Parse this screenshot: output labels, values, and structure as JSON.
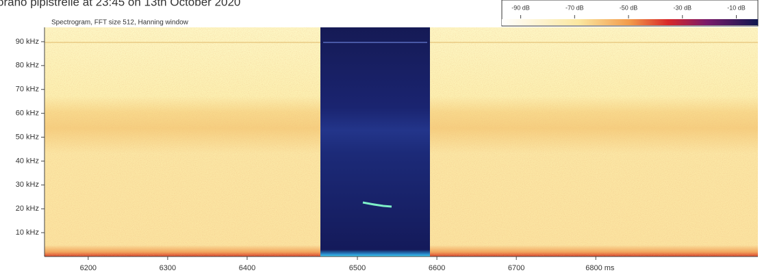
{
  "chart_data": {
    "type": "spectrogram",
    "title": "orano pipistrelle at 23:45 on 13th October 2020",
    "subtitle": "Spectrogram, FFT size 512, Hanning window",
    "ylim": [
      0,
      96
    ],
    "yticks": [
      {
        "value": 10,
        "label": "10 kHz"
      },
      {
        "value": 20,
        "label": "20 kHz"
      },
      {
        "value": 30,
        "label": "30 kHz"
      },
      {
        "value": 40,
        "label": "40 kHz"
      },
      {
        "value": 50,
        "label": "50 kHz"
      },
      {
        "value": 60,
        "label": "60 kHz"
      },
      {
        "value": 70,
        "label": "70 kHz"
      },
      {
        "value": 80,
        "label": "80 kHz"
      },
      {
        "value": 90,
        "label": "90 kHz"
      }
    ],
    "xlim": [
      6145,
      7004
    ],
    "xticks": [
      6200,
      6300,
      6400,
      6500,
      6600,
      6700,
      {
        "value": 6800,
        "label": "6800 ms"
      }
    ],
    "clim": [
      -97,
      -2
    ],
    "cticks": [
      {
        "value": -90,
        "label": "-90 dB"
      },
      {
        "value": -70,
        "label": "-70 dB"
      },
      {
        "value": -50,
        "label": "-50 dB"
      },
      {
        "value": -30,
        "label": "-30 dB"
      },
      {
        "value": -10,
        "label": "-10 dB"
      }
    ]
  }
}
